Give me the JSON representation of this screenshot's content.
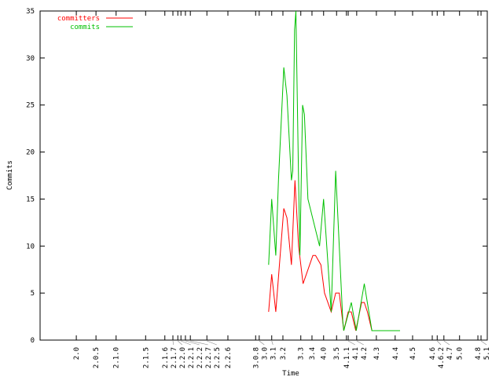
{
  "chart_data": {
    "type": "line",
    "title": "",
    "xlabel": "Time",
    "ylabel": "Commits",
    "xlim": [
      0,
      100
    ],
    "ylim": [
      0,
      35
    ],
    "yticks": [
      0,
      5,
      10,
      15,
      20,
      25,
      30,
      35
    ],
    "xticks": [
      {
        "x": 8.1,
        "label": "2.0"
      },
      {
        "x": 12.5,
        "label": "2.0.5"
      },
      {
        "x": 17.0,
        "label": "2.1.0"
      },
      {
        "x": 23.6,
        "label": "2.1.5"
      },
      {
        "x": 27.9,
        "label": "2.1.6"
      },
      {
        "x": 29.7,
        "label": "2.1.7"
      },
      {
        "x": 30.8,
        "label": "2.2.0"
      },
      {
        "x": 31.5,
        "label": "2.2.1"
      },
      {
        "x": 32.5,
        "label": "2.2.2"
      },
      {
        "x": 33.6,
        "label": "2.2.7"
      },
      {
        "x": 37.3,
        "label": "2.2.5"
      },
      {
        "x": 42.0,
        "label": "2.2.6"
      },
      {
        "x": 48.2,
        "label": "3.0.8"
      },
      {
        "x": 49.0,
        "label": "3.0"
      },
      {
        "x": 51.8,
        "label": "3.1"
      },
      {
        "x": 54.3,
        "label": "3.2"
      },
      {
        "x": 58.3,
        "label": "3.3"
      },
      {
        "x": 60.8,
        "label": "3.4"
      },
      {
        "x": 63.4,
        "label": "4.0"
      },
      {
        "x": 66.3,
        "label": "3.5"
      },
      {
        "x": 68.5,
        "label": "4.1.1"
      },
      {
        "x": 68.9,
        "label": "4.1"
      },
      {
        "x": 70.8,
        "label": "4.2"
      },
      {
        "x": 75.2,
        "label": "4.3"
      },
      {
        "x": 79.4,
        "label": "4.4"
      },
      {
        "x": 83.3,
        "label": "4.5"
      },
      {
        "x": 87.7,
        "label": "4.6"
      },
      {
        "x": 88.8,
        "label": "4.6.2"
      },
      {
        "x": 90.3,
        "label": "4.7"
      },
      {
        "x": 93.8,
        "label": "5.0"
      },
      {
        "x": 97.9,
        "label": "4.8"
      },
      {
        "x": 98.6,
        "label": "5.1"
      }
    ],
    "grid": false,
    "legend_placement": "top-left",
    "series": [
      {
        "name": "committers",
        "color": "#ff0000",
        "x": [
          51.1,
          51.8,
          52.7,
          54.5,
          55.2,
          56.2,
          57.0,
          57.8,
          58.8,
          61.0,
          61.6,
          62.8,
          63.6,
          65.1,
          66.1,
          66.9,
          67.9,
          68.9,
          69.6,
          70.6,
          71.9,
          72.5,
          73.2,
          74.2,
          80.5
        ],
        "y": [
          3,
          7,
          3,
          14,
          13,
          8,
          17,
          10,
          6,
          9,
          9,
          8,
          5,
          3,
          5,
          5,
          1,
          3,
          3,
          1,
          4,
          4,
          3,
          1,
          1
        ]
      },
      {
        "name": "commits",
        "color": "#00c000",
        "x": [
          51.1,
          51.8,
          52.7,
          53.3,
          54.5,
          55.2,
          56.2,
          56.5,
          56.9,
          57.2,
          57.8,
          58.1,
          58.7,
          59.1,
          59.9,
          62.5,
          63.4,
          65.1,
          66.1,
          67.7,
          67.9,
          69.6,
          70.7,
          72.5,
          74.2,
          80.5
        ],
        "y": [
          8,
          15,
          9,
          17,
          29,
          26,
          17,
          18,
          33,
          35,
          17,
          9,
          25,
          24,
          15,
          10,
          15,
          3,
          18,
          2,
          1,
          4,
          1,
          6,
          1,
          1
        ]
      }
    ]
  }
}
